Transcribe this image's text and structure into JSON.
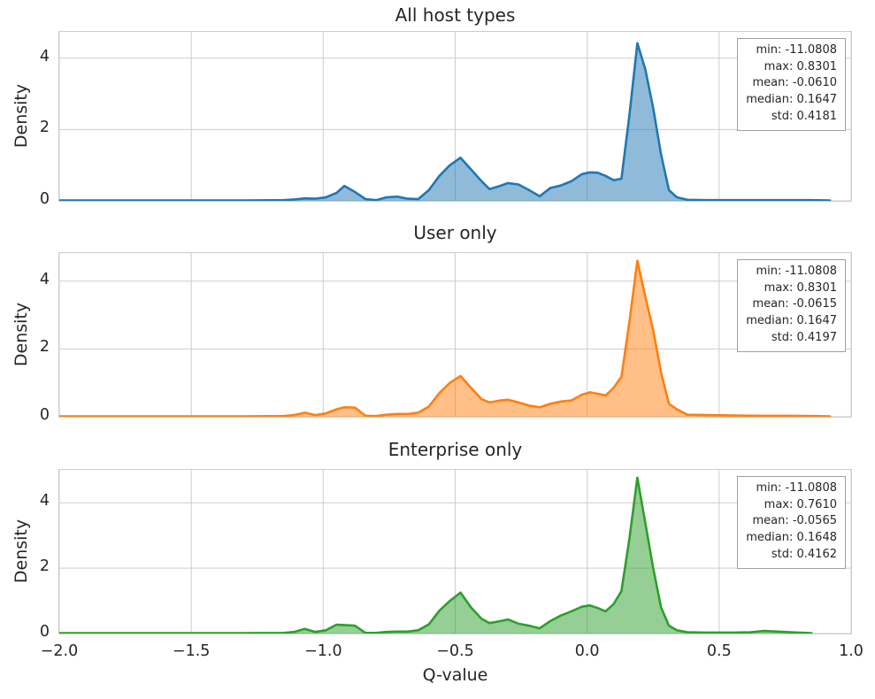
{
  "figure": {
    "background": "#ffffff",
    "grid_color": "#cdcdcd",
    "frame_color": "#cdcdcd",
    "text_color": "#262626"
  },
  "chart_data": [
    {
      "type": "area",
      "title": "All host types",
      "xlabel": "Q-value",
      "ylabel": "Density",
      "xlim": [
        -2.0,
        1.0
      ],
      "ylim": [
        0,
        4.74
      ],
      "grid": true,
      "legend": "none",
      "x_ticks": [
        "−2.0",
        "−1.5",
        "−1.0",
        "−0.5",
        "0.0",
        "0.5",
        "1.0"
      ],
      "x_tick_values": [
        -2.0,
        -1.5,
        -1.0,
        -0.5,
        0.0,
        0.5,
        1.0
      ],
      "y_ticks": [
        0,
        2,
        4
      ],
      "line_color": "#1f77b4",
      "fill_color": "rgba(31,119,180,0.5)",
      "stats": {
        "min": "-11.0808",
        "max": "0.8301",
        "mean": "-0.0610",
        "median": "0.1647",
        "std": "0.4181"
      },
      "x": [
        -2.0,
        -1.3,
        -1.15,
        -1.11,
        -1.07,
        -1.03,
        -0.99,
        -0.95,
        -0.92,
        -0.88,
        -0.84,
        -0.8,
        -0.76,
        -0.72,
        -0.68,
        -0.64,
        -0.6,
        -0.56,
        -0.52,
        -0.48,
        -0.44,
        -0.4,
        -0.37,
        -0.33,
        -0.3,
        -0.26,
        -0.22,
        -0.18,
        -0.14,
        -0.1,
        -0.06,
        -0.02,
        0.01,
        0.04,
        0.07,
        0.1,
        0.13,
        0.16,
        0.19,
        0.22,
        0.25,
        0.28,
        0.31,
        0.34,
        0.38,
        0.45,
        0.55,
        0.65,
        0.75,
        0.85,
        0.92
      ],
      "y": [
        0.01,
        0.01,
        0.02,
        0.04,
        0.07,
        0.06,
        0.1,
        0.22,
        0.42,
        0.25,
        0.05,
        0.02,
        0.1,
        0.12,
        0.06,
        0.05,
        0.3,
        0.7,
        1.0,
        1.21,
        0.88,
        0.55,
        0.33,
        0.42,
        0.5,
        0.46,
        0.3,
        0.13,
        0.36,
        0.43,
        0.55,
        0.75,
        0.8,
        0.79,
        0.7,
        0.58,
        0.62,
        2.4,
        4.42,
        3.7,
        2.6,
        1.3,
        0.3,
        0.1,
        0.03,
        0.02,
        0.02,
        0.02,
        0.02,
        0.02,
        0.01
      ]
    },
    {
      "type": "area",
      "title": "User only",
      "xlabel": "Q-value",
      "ylabel": "Density",
      "xlim": [
        -2.0,
        1.0
      ],
      "ylim": [
        0,
        4.83
      ],
      "grid": true,
      "legend": "none",
      "x_ticks": [
        "−2.0",
        "−1.5",
        "−1.0",
        "−0.5",
        "0.0",
        "0.5",
        "1.0"
      ],
      "x_tick_values": [
        -2.0,
        -1.5,
        -1.0,
        -0.5,
        0.0,
        0.5,
        1.0
      ],
      "y_ticks": [
        0,
        2,
        4
      ],
      "line_color": "#ff7f0e",
      "fill_color": "rgba(255,127,14,0.5)",
      "stats": {
        "min": "-11.0808",
        "max": "0.8301",
        "mean": "-0.0615",
        "median": "0.1647",
        "std": "0.4197"
      },
      "x": [
        -2.0,
        -1.3,
        -1.15,
        -1.11,
        -1.07,
        -1.03,
        -0.99,
        -0.95,
        -0.92,
        -0.88,
        -0.84,
        -0.8,
        -0.76,
        -0.72,
        -0.68,
        -0.64,
        -0.6,
        -0.56,
        -0.52,
        -0.48,
        -0.44,
        -0.4,
        -0.37,
        -0.33,
        -0.3,
        -0.26,
        -0.22,
        -0.18,
        -0.14,
        -0.1,
        -0.06,
        -0.02,
        0.01,
        0.04,
        0.07,
        0.1,
        0.13,
        0.16,
        0.19,
        0.22,
        0.25,
        0.28,
        0.31,
        0.34,
        0.38,
        0.45,
        0.55,
        0.65,
        0.75,
        0.85,
        0.92
      ],
      "y": [
        0.01,
        0.01,
        0.02,
        0.05,
        0.12,
        0.05,
        0.1,
        0.22,
        0.28,
        0.27,
        0.03,
        0.02,
        0.06,
        0.08,
        0.08,
        0.12,
        0.3,
        0.7,
        1.0,
        1.2,
        0.85,
        0.52,
        0.42,
        0.48,
        0.5,
        0.42,
        0.33,
        0.28,
        0.38,
        0.45,
        0.48,
        0.65,
        0.72,
        0.68,
        0.63,
        0.85,
        1.18,
        2.8,
        4.6,
        3.55,
        2.55,
        1.3,
        0.38,
        0.22,
        0.06,
        0.05,
        0.04,
        0.03,
        0.03,
        0.02,
        0.01
      ]
    },
    {
      "type": "area",
      "title": "Enterprise only",
      "xlabel": "Q-value",
      "ylabel": "Density",
      "xlim": [
        -2.0,
        1.0
      ],
      "ylim": [
        0,
        5.01
      ],
      "grid": true,
      "legend": "none",
      "x_ticks": [
        "−2.0",
        "−1.5",
        "−1.0",
        "−0.5",
        "0.0",
        "0.5",
        "1.0"
      ],
      "x_tick_values": [
        -2.0,
        -1.5,
        -1.0,
        -0.5,
        0.0,
        0.5,
        1.0
      ],
      "y_ticks": [
        0,
        2,
        4
      ],
      "line_color": "#2ca02c",
      "fill_color": "rgba(44,160,44,0.5)",
      "stats": {
        "min": "-11.0808",
        "max": "0.7610",
        "mean": "-0.0565",
        "median": "0.1648",
        "std": "0.4162"
      },
      "x": [
        -2.0,
        -1.3,
        -1.15,
        -1.11,
        -1.07,
        -1.03,
        -0.99,
        -0.95,
        -0.92,
        -0.88,
        -0.84,
        -0.8,
        -0.76,
        -0.72,
        -0.68,
        -0.64,
        -0.6,
        -0.56,
        -0.52,
        -0.48,
        -0.44,
        -0.4,
        -0.37,
        -0.33,
        -0.3,
        -0.26,
        -0.22,
        -0.18,
        -0.14,
        -0.1,
        -0.06,
        -0.02,
        0.01,
        0.04,
        0.07,
        0.1,
        0.13,
        0.16,
        0.19,
        0.22,
        0.25,
        0.28,
        0.31,
        0.34,
        0.38,
        0.45,
        0.55,
        0.62,
        0.67,
        0.72,
        0.8,
        0.85
      ],
      "y": [
        0.01,
        0.01,
        0.02,
        0.05,
        0.14,
        0.05,
        0.1,
        0.27,
        0.26,
        0.24,
        0.02,
        0.02,
        0.05,
        0.06,
        0.06,
        0.1,
        0.28,
        0.7,
        1.0,
        1.25,
        0.8,
        0.45,
        0.32,
        0.38,
        0.43,
        0.3,
        0.24,
        0.16,
        0.38,
        0.55,
        0.68,
        0.82,
        0.86,
        0.78,
        0.68,
        0.9,
        1.3,
        2.9,
        4.77,
        3.4,
        2.0,
        0.8,
        0.24,
        0.1,
        0.04,
        0.03,
        0.03,
        0.04,
        0.08,
        0.06,
        0.03,
        0.01
      ]
    }
  ]
}
